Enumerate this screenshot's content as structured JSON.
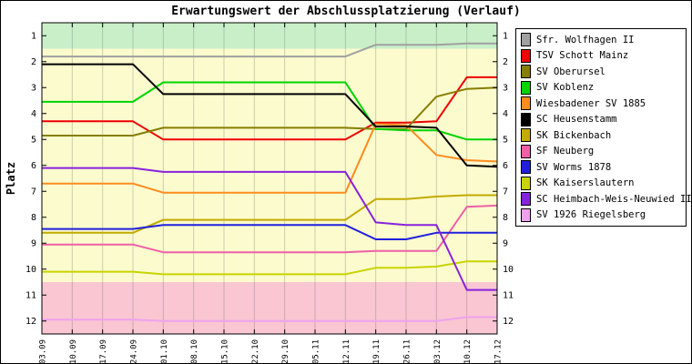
{
  "title": "Erwartungswert der Abschlussplatzierung (Verlauf)",
  "ylabel": "Platz",
  "chart_data": {
    "type": "line",
    "x_labels": [
      "03.09",
      "10.09",
      "17.09",
      "24.09",
      "01.10",
      "08.10",
      "15.10",
      "22.10",
      "29.10",
      "05.11",
      "12.11",
      "19.11",
      "26.11",
      "03.12",
      "10.12",
      "17.12"
    ],
    "yticks": [
      1,
      2,
      3,
      4,
      5,
      6,
      7,
      8,
      9,
      10,
      11,
      12
    ],
    "ylim": [
      0.5,
      12.5
    ],
    "y_inverted": true,
    "grid": "vertical",
    "legend_position": "right",
    "bands": [
      {
        "name": "top-zone",
        "from": 0.5,
        "to": 1.5,
        "color": "#c9efc9"
      },
      {
        "name": "mid-zone",
        "from": 1.5,
        "to": 10.5,
        "color": "#fbfbce"
      },
      {
        "name": "bottom-zone",
        "from": 10.5,
        "to": 12.5,
        "color": "#f9c6d2"
      }
    ],
    "series": [
      {
        "name": "Sfr. Wolfhagen II",
        "color": "#a0a0a0",
        "values": [
          1.8,
          1.8,
          1.8,
          1.8,
          1.8,
          1.8,
          1.8,
          1.8,
          1.8,
          1.8,
          1.8,
          1.35,
          1.35,
          1.35,
          1.3,
          1.3
        ]
      },
      {
        "name": "TSV Schott Mainz",
        "color": "#f00000",
        "values": [
          4.3,
          4.3,
          4.3,
          4.3,
          5.0,
          5.0,
          5.0,
          5.0,
          5.0,
          5.0,
          5.0,
          4.35,
          4.35,
          4.3,
          2.6,
          2.6
        ]
      },
      {
        "name": "SV Oberursel",
        "color": "#867e00",
        "values": [
          4.85,
          4.85,
          4.85,
          4.85,
          4.55,
          4.55,
          4.55,
          4.55,
          4.55,
          4.55,
          4.55,
          4.6,
          4.6,
          3.35,
          3.05,
          3.0
        ]
      },
      {
        "name": "SV Koblenz",
        "color": "#00d400",
        "values": [
          3.55,
          3.55,
          3.55,
          3.55,
          2.8,
          2.8,
          2.8,
          2.8,
          2.8,
          2.8,
          2.8,
          4.6,
          4.65,
          4.65,
          5.0,
          5.0
        ]
      },
      {
        "name": "Wiesbadener SV 1885",
        "color": "#ff8c1e",
        "values": [
          6.7,
          6.7,
          6.7,
          6.7,
          7.05,
          7.05,
          7.05,
          7.05,
          7.05,
          7.05,
          7.05,
          4.4,
          4.45,
          5.6,
          5.8,
          5.85
        ]
      },
      {
        "name": "SC Heusenstamm",
        "color": "#000000",
        "values": [
          2.1,
          2.1,
          2.1,
          2.1,
          3.25,
          3.25,
          3.25,
          3.25,
          3.25,
          3.25,
          3.25,
          4.5,
          4.5,
          4.55,
          6.0,
          6.05
        ]
      },
      {
        "name": "SK Bickenbach",
        "color": "#c3aa00",
        "values": [
          8.6,
          8.6,
          8.6,
          8.6,
          8.1,
          8.1,
          8.1,
          8.1,
          8.1,
          8.1,
          8.1,
          7.3,
          7.3,
          7.2,
          7.15,
          7.15
        ]
      },
      {
        "name": "SF Neuberg",
        "color": "#ef5fa7",
        "values": [
          9.05,
          9.05,
          9.05,
          9.05,
          9.35,
          9.35,
          9.35,
          9.35,
          9.35,
          9.35,
          9.35,
          9.3,
          9.3,
          9.3,
          7.6,
          7.55
        ]
      },
      {
        "name": "SV Worms 1878",
        "color": "#2020dc",
        "values": [
          8.45,
          8.45,
          8.45,
          8.45,
          8.3,
          8.3,
          8.3,
          8.3,
          8.3,
          8.3,
          8.3,
          8.85,
          8.85,
          8.6,
          8.6,
          8.6
        ]
      },
      {
        "name": "SK Kaiserslautern",
        "color": "#c8d400",
        "values": [
          10.1,
          10.1,
          10.1,
          10.1,
          10.2,
          10.2,
          10.2,
          10.2,
          10.2,
          10.2,
          10.2,
          9.95,
          9.95,
          9.9,
          9.7,
          9.7
        ]
      },
      {
        "name": "SC Heimbach-Weis-Neuwied II",
        "color": "#8822dd",
        "values": [
          6.1,
          6.1,
          6.1,
          6.1,
          6.25,
          6.25,
          6.25,
          6.25,
          6.25,
          6.25,
          6.25,
          8.2,
          8.3,
          8.3,
          10.8,
          10.8
        ]
      },
      {
        "name": "SV 1926 Riegelsberg",
        "color": "#eea2ee",
        "values": [
          11.95,
          11.95,
          11.95,
          11.95,
          12.0,
          12.0,
          12.0,
          12.0,
          12.0,
          12.0,
          12.0,
          12.0,
          12.0,
          12.0,
          11.85,
          11.85
        ]
      }
    ]
  }
}
